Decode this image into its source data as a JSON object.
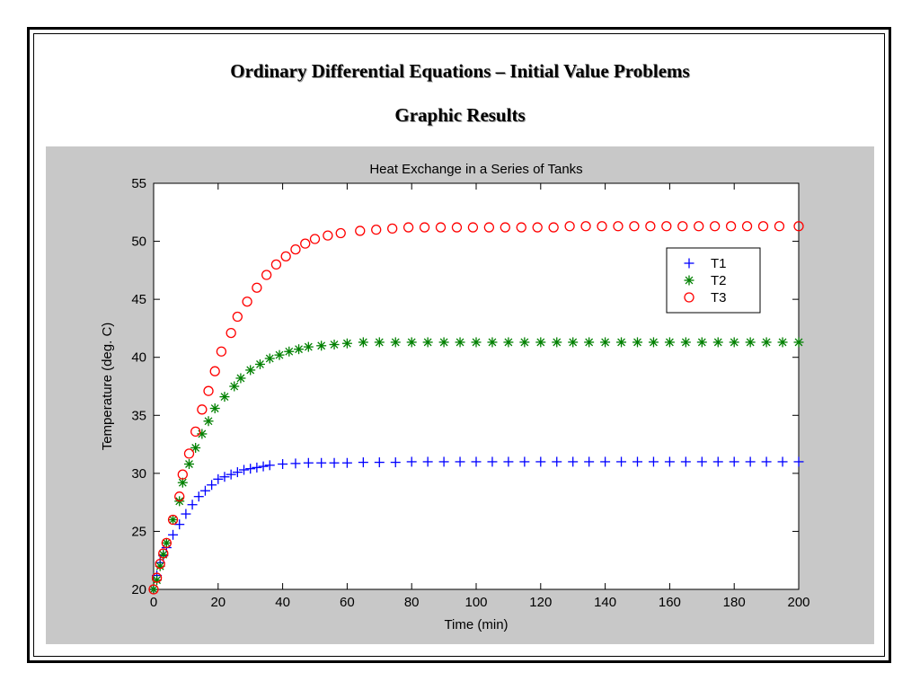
{
  "page": {
    "title": "Ordinary Differential Equations – Initial Value Problems",
    "subtitle": "Graphic Results"
  },
  "chart_data": {
    "type": "scatter",
    "title": "Heat Exchange in a Series of Tanks",
    "xlabel": "Time (min)",
    "ylabel": "Temperature (deg. C)",
    "xlim": [
      0,
      200
    ],
    "ylim": [
      20,
      55
    ],
    "xticks": [
      0,
      20,
      40,
      60,
      80,
      100,
      120,
      140,
      160,
      180,
      200
    ],
    "yticks": [
      20,
      25,
      30,
      35,
      40,
      45,
      50,
      55
    ],
    "grid": false,
    "legend_position": "top-right",
    "series": [
      {
        "name": "T1",
        "marker": "plus",
        "color": "#0000ff",
        "x": [
          0,
          1,
          2,
          3,
          4,
          6,
          8,
          10,
          12,
          14,
          16,
          18,
          20,
          22,
          24,
          26,
          28,
          30,
          32,
          34,
          36,
          40,
          44,
          48,
          52,
          56,
          60,
          65,
          70,
          75,
          80,
          85,
          90,
          95,
          100,
          105,
          110,
          115,
          120,
          125,
          130,
          135,
          140,
          145,
          150,
          155,
          160,
          165,
          170,
          175,
          180,
          185,
          190,
          195,
          200
        ],
        "y": [
          20.0,
          21.2,
          22.3,
          22.9,
          23.6,
          24.7,
          25.6,
          26.5,
          27.3,
          28.0,
          28.5,
          29.0,
          29.5,
          29.7,
          29.9,
          30.1,
          30.3,
          30.4,
          30.5,
          30.6,
          30.7,
          30.8,
          30.85,
          30.9,
          30.9,
          30.9,
          30.9,
          30.95,
          30.95,
          30.95,
          31.0,
          31.0,
          31.0,
          31.0,
          31.0,
          31.0,
          31.0,
          31.0,
          31.0,
          31.0,
          31.0,
          31.0,
          31.0,
          31.0,
          31.0,
          31.0,
          31.0,
          31.0,
          31.0,
          31.0,
          31.0,
          31.0,
          31.0,
          31.0,
          31.0
        ]
      },
      {
        "name": "T2",
        "marker": "star",
        "color": "#008000",
        "x": [
          0,
          1,
          2,
          3,
          4,
          6,
          8,
          9,
          11,
          13,
          15,
          17,
          19,
          22,
          25,
          27,
          30,
          33,
          36,
          39,
          42,
          45,
          48,
          52,
          56,
          60,
          65,
          70,
          75,
          80,
          85,
          90,
          95,
          100,
          105,
          110,
          115,
          120,
          125,
          130,
          135,
          140,
          145,
          150,
          155,
          160,
          165,
          170,
          175,
          180,
          185,
          190,
          195,
          200
        ],
        "y": [
          20.0,
          20.8,
          22.0,
          23.0,
          24.0,
          26.0,
          27.6,
          29.2,
          30.8,
          32.2,
          33.4,
          34.5,
          35.6,
          36.6,
          37.5,
          38.2,
          38.9,
          39.4,
          39.9,
          40.2,
          40.5,
          40.7,
          40.9,
          41.0,
          41.1,
          41.2,
          41.3,
          41.3,
          41.3,
          41.3,
          41.3,
          41.3,
          41.3,
          41.3,
          41.3,
          41.3,
          41.3,
          41.3,
          41.3,
          41.3,
          41.3,
          41.3,
          41.3,
          41.3,
          41.3,
          41.3,
          41.3,
          41.3,
          41.3,
          41.3,
          41.3,
          41.3,
          41.3,
          41.3
        ]
      },
      {
        "name": "T3",
        "marker": "circle",
        "color": "#ff0000",
        "x": [
          0,
          1,
          2,
          3,
          4,
          6,
          8,
          9,
          11,
          13,
          15,
          17,
          19,
          21,
          24,
          26,
          29,
          32,
          35,
          38,
          41,
          44,
          47,
          50,
          54,
          58,
          64,
          69,
          74,
          79,
          84,
          89,
          94,
          99,
          104,
          109,
          114,
          119,
          124,
          129,
          134,
          139,
          144,
          149,
          154,
          159,
          164,
          169,
          174,
          179,
          184,
          189,
          194,
          200
        ],
        "y": [
          20.0,
          21.0,
          22.2,
          23.1,
          24.0,
          26.0,
          28.0,
          29.9,
          31.7,
          33.6,
          35.5,
          37.1,
          38.8,
          40.5,
          42.1,
          43.5,
          44.8,
          46.0,
          47.1,
          48.0,
          48.7,
          49.3,
          49.8,
          50.2,
          50.5,
          50.7,
          50.9,
          51.0,
          51.1,
          51.2,
          51.2,
          51.2,
          51.2,
          51.2,
          51.2,
          51.2,
          51.2,
          51.2,
          51.2,
          51.3,
          51.3,
          51.3,
          51.3,
          51.3,
          51.3,
          51.3,
          51.3,
          51.3,
          51.3,
          51.3,
          51.3,
          51.3,
          51.3,
          51.3
        ]
      }
    ]
  }
}
